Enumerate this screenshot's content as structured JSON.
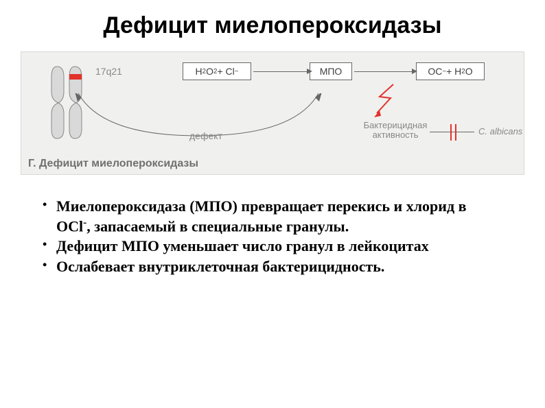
{
  "title": {
    "text": "Дефицит миелопероксидазы",
    "fontsize": 34,
    "color": "#000000"
  },
  "diagram": {
    "panel_bg": "#f0f0ef",
    "panel_border": "#d8d8d6",
    "panel_title": {
      "text": "Г. Дефицит миелопероксидазы",
      "color": "#707070",
      "fontsize": 16
    },
    "chromosome": {
      "fill": "#d9d9d9",
      "stroke": "#888888",
      "band_color": "#e2322a",
      "locus_label": "17q21",
      "locus_fontsize": 14
    },
    "boxes": {
      "input": {
        "html": "H<sub>2</sub>O<sub>2</sub> + Cl<sup>−</sup>",
        "color": "#404040",
        "fontsize": 14
      },
      "mpo": {
        "html": "МПО",
        "color": "#404040",
        "fontsize": 14
      },
      "output": {
        "html": "OC<sup>−</sup> + H<sub>2</sub>O",
        "color": "#404040",
        "fontsize": 14
      }
    },
    "arrow_color": "#666666",
    "defect_label": {
      "text": "дефект",
      "fontsize": 14
    },
    "zigzag_color": "#e2322a",
    "bactericidal": {
      "line1": "Бактерицидная",
      "line2": "активность",
      "fontsize": 13
    },
    "double_bar_color": "#e2322a",
    "albicans": {
      "text": "C. albicans",
      "fontsize": 13
    }
  },
  "bullets": {
    "fontsize": 22,
    "items": [
      "Миелопероксидаза (МПО) превращает перекись и хлорид в OCl<sup>-</sup>, запасаемый в специальные гранулы.",
      "Дефицит МПО уменьшает число гранул в лейкоцитах",
      "Ослабевает внутриклеточная бактерицидность."
    ]
  }
}
